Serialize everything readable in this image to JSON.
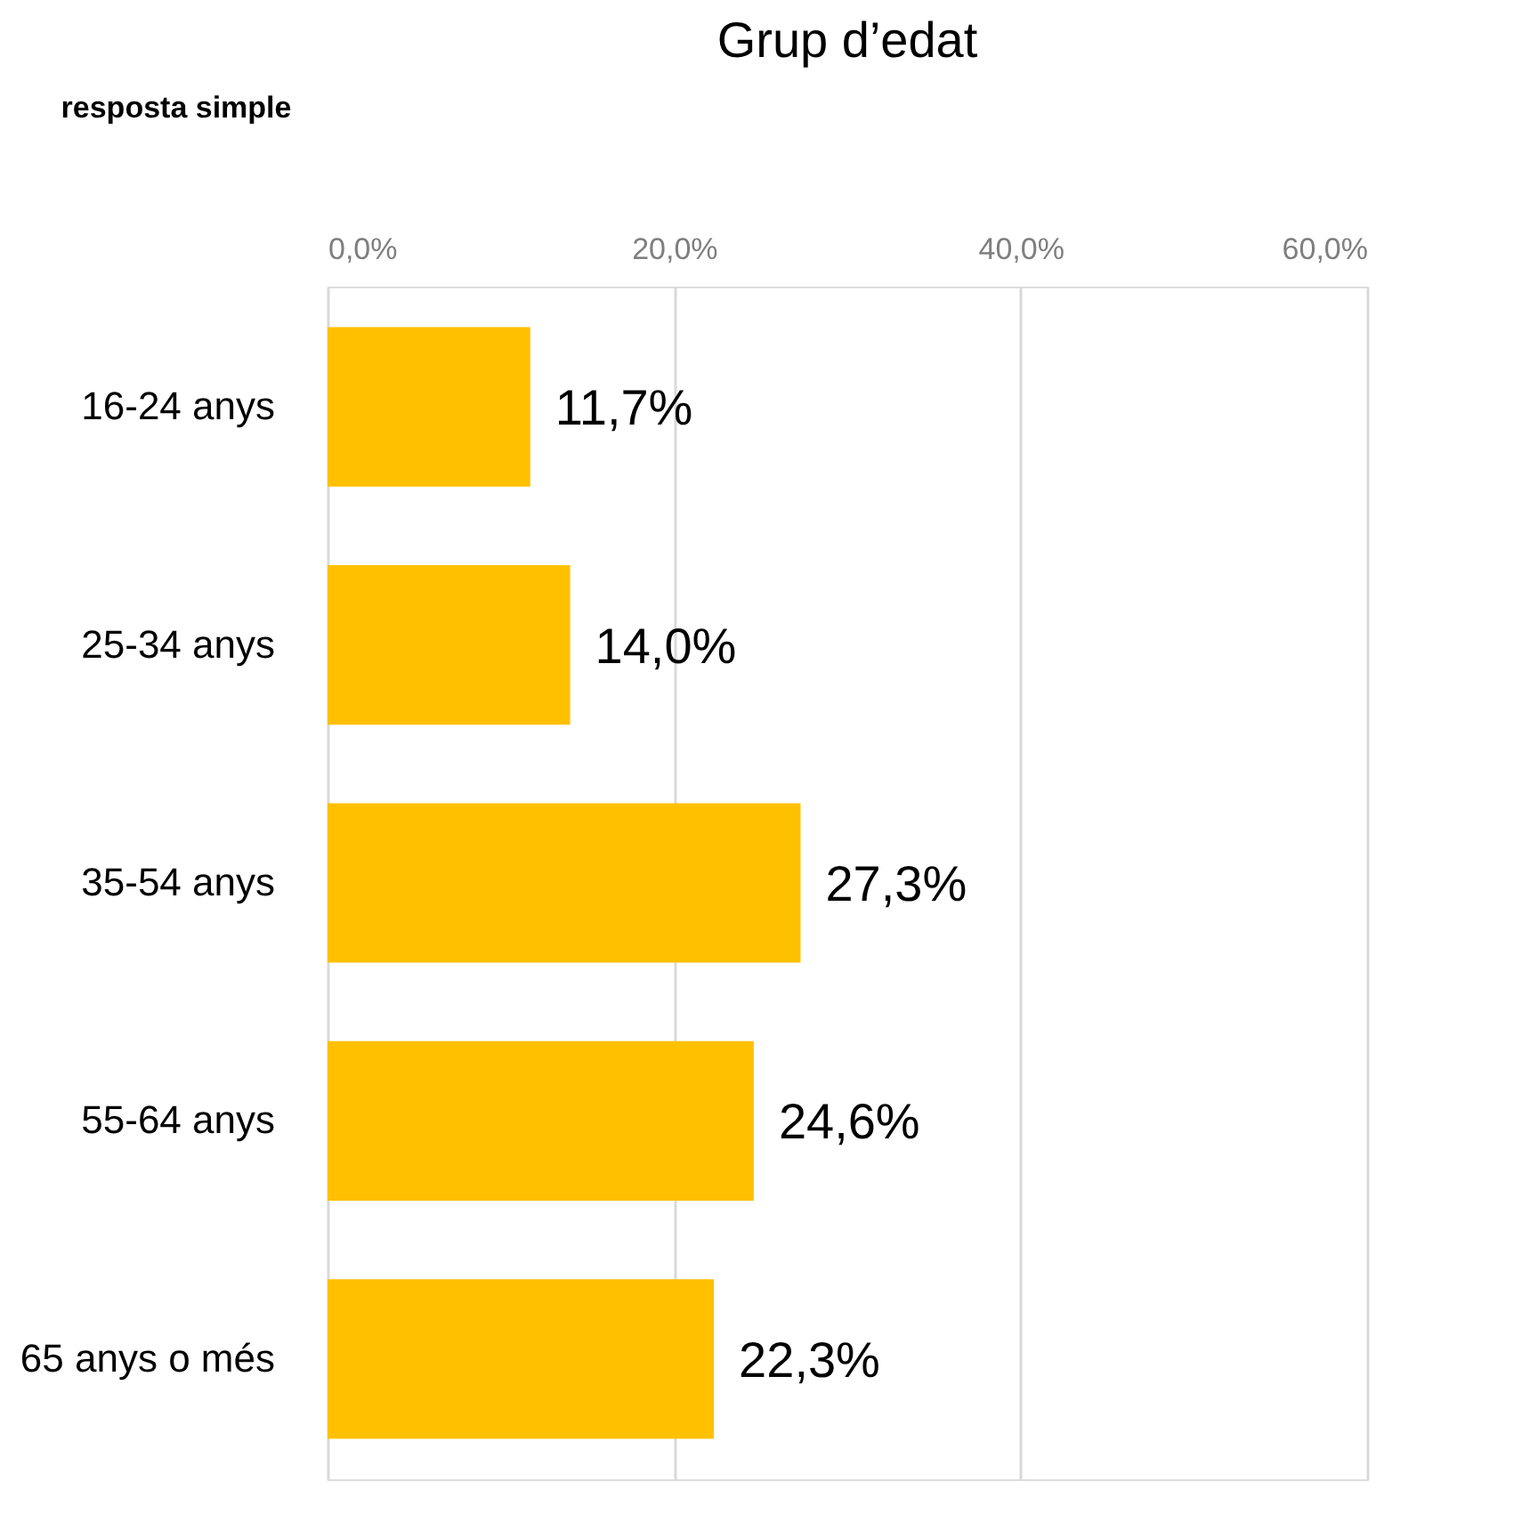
{
  "chart_data": {
    "type": "bar",
    "orientation": "horizontal",
    "title": "Grup d’edat",
    "annotations": [
      "resposta simple"
    ],
    "categories": [
      "16-24 anys",
      "25-34 anys",
      "35-54 anys",
      "55-64 anys",
      "65 anys o més"
    ],
    "values": [
      11.7,
      14.0,
      27.3,
      24.6,
      22.3
    ],
    "value_labels": [
      "11,7%",
      "14,0%",
      "27,3%",
      "24,6%",
      "22,3%"
    ],
    "color": "#ffc000",
    "xlim": [
      0,
      60
    ],
    "xticks": [
      {
        "value": 0,
        "label": "0,0%"
      },
      {
        "value": 20,
        "label": "20,0%"
      },
      {
        "value": 40,
        "label": "40,0%"
      },
      {
        "value": 60,
        "label": "60,0%"
      }
    ],
    "grid": "x"
  }
}
